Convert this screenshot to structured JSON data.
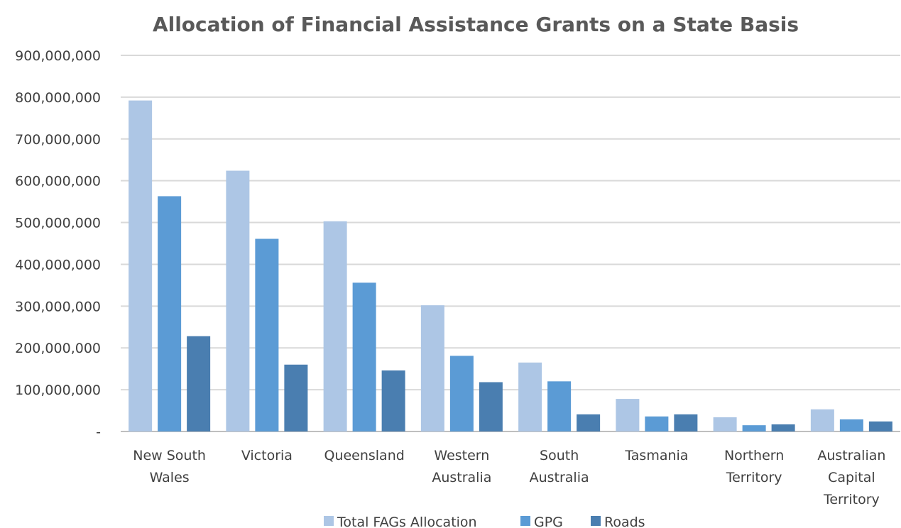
{
  "chart_data": {
    "type": "bar",
    "title": "Allocation of Financial Assistance Grants on a State Basis",
    "xlabel": "",
    "ylabel": "",
    "ylim": [
      0,
      900000000
    ],
    "yticks": [
      "-",
      "100,000,000",
      "200,000,000",
      "300,000,000",
      "400,000,000",
      "500,000,000",
      "600,000,000",
      "700,000,000",
      "800,000,000",
      "900,000,000"
    ],
    "grid": true,
    "legend_position": "bottom",
    "categories": [
      [
        "New South",
        "Wales"
      ],
      [
        "Victoria"
      ],
      [
        "Queensland"
      ],
      [
        "Western",
        "Australia"
      ],
      [
        "South",
        "Australia"
      ],
      [
        "Tasmania"
      ],
      [
        "Northern",
        "Territory"
      ],
      [
        "Australian",
        "Capital",
        "Territory"
      ]
    ],
    "series": [
      {
        "name": "Total FAGs Allocation",
        "color": "#adc6e5",
        "values": [
          792000000,
          624000000,
          503000000,
          302000000,
          165000000,
          78000000,
          34000000,
          53000000
        ]
      },
      {
        "name": "GPG",
        "color": "#5b9bd5",
        "values": [
          563000000,
          461000000,
          356000000,
          181000000,
          120000000,
          36000000,
          15000000,
          29000000
        ]
      },
      {
        "name": "Roads",
        "color": "#4a7eb0",
        "values": [
          228000000,
          160000000,
          146000000,
          118000000,
          41000000,
          41000000,
          17000000,
          24000000
        ]
      }
    ]
  }
}
